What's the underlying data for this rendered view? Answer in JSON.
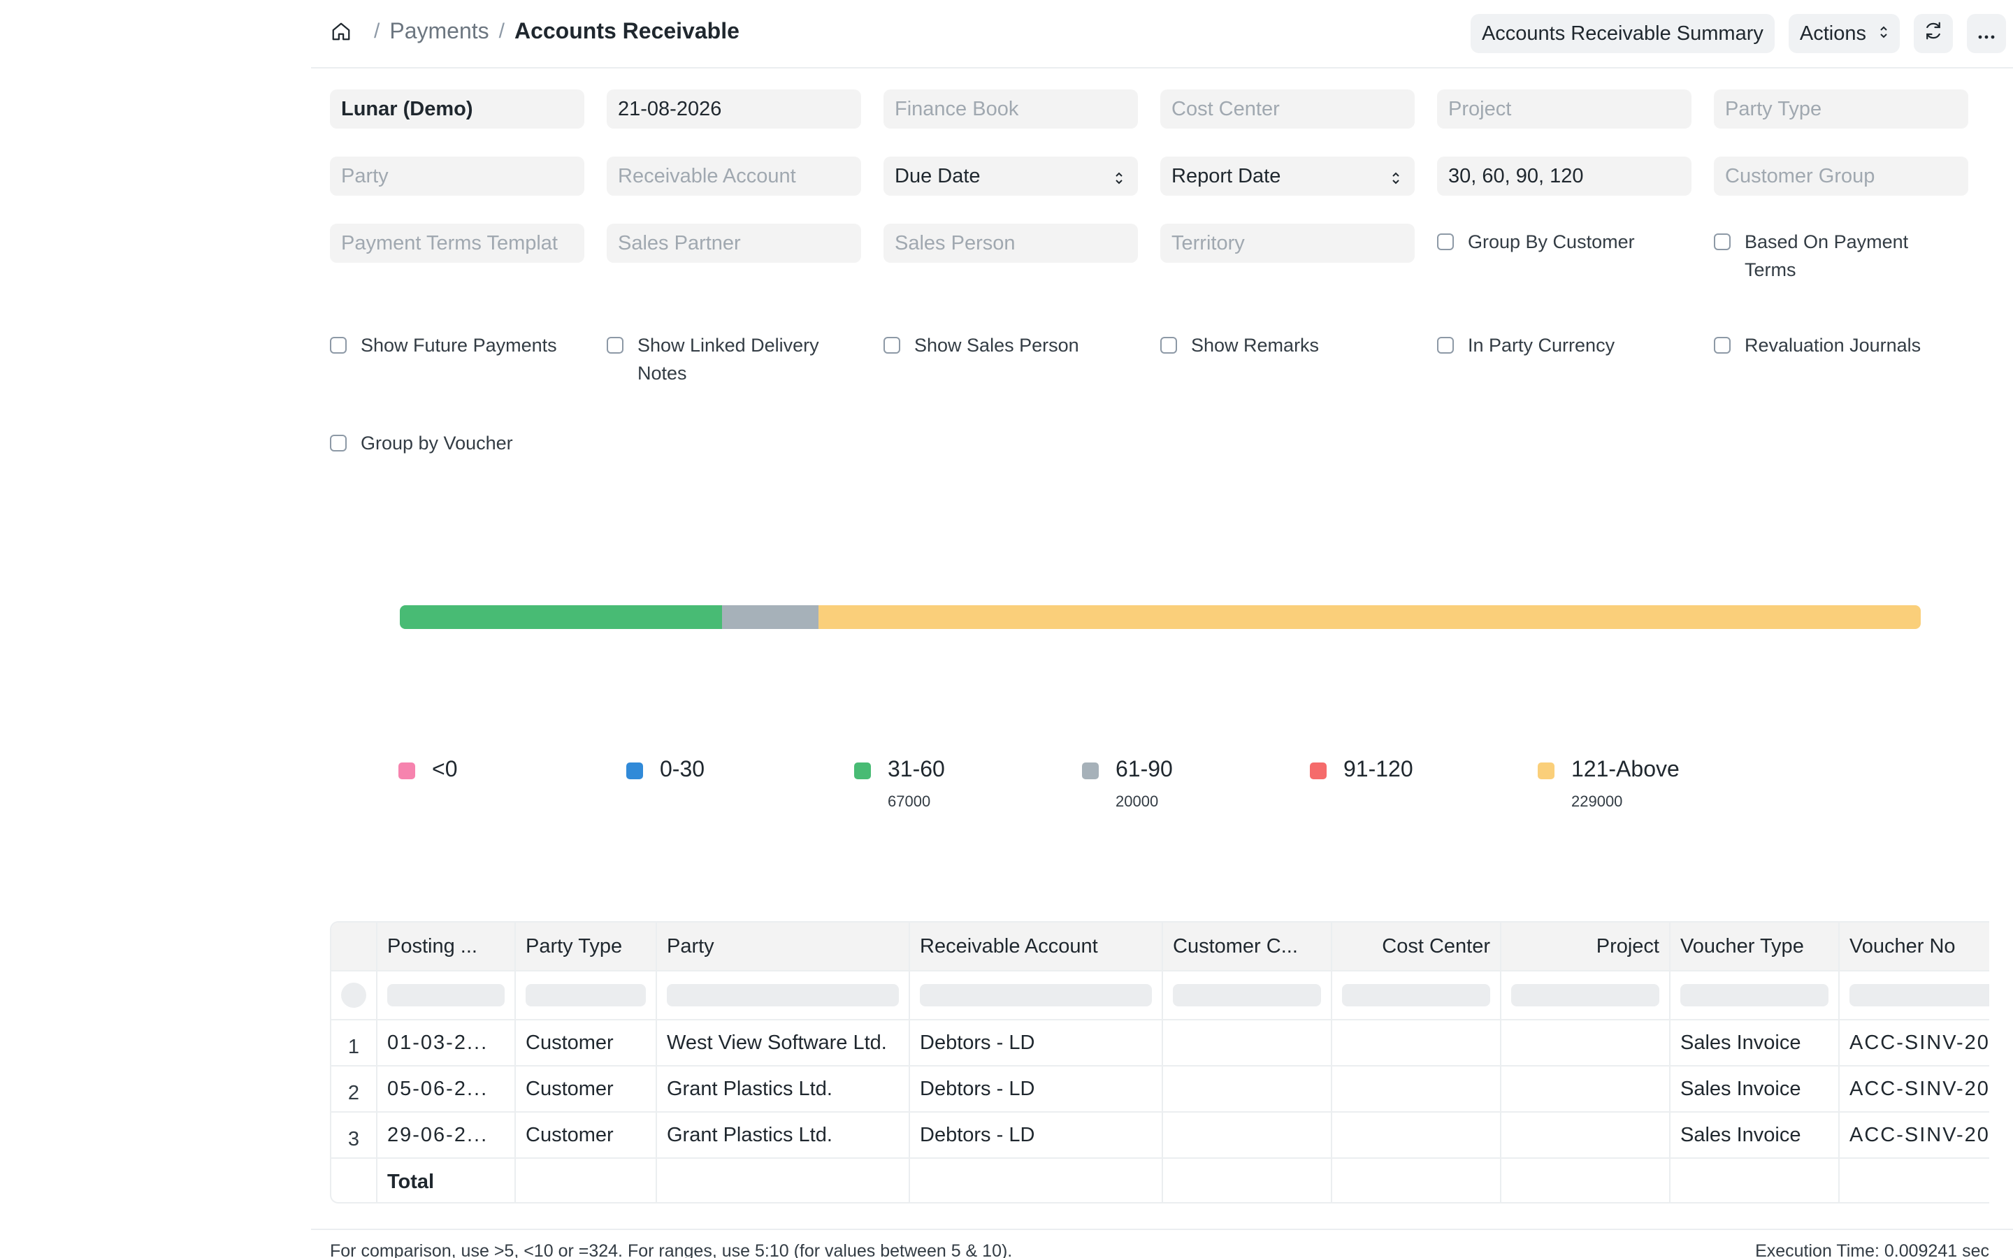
{
  "breadcrumb": {
    "home_icon": "home-icon",
    "parent": "Payments",
    "separator": "/",
    "current": "Accounts Receivable"
  },
  "toolbar": {
    "summary_label": "Accounts Receivable Summary",
    "actions_label": "Actions",
    "refresh_icon": "refresh-icon",
    "more_icon": "more-icon"
  },
  "filters": {
    "company": "Lunar (Demo)",
    "report_date_value": "21-08-2026",
    "finance_book_ph": "Finance Book",
    "cost_center_ph": "Cost Center",
    "project_ph": "Project",
    "party_type_ph": "Party Type",
    "party_ph": "Party",
    "receivable_account_ph": "Receivable Account",
    "ageing_based_on": "Due Date",
    "calculate_ageing_with": "Report Date",
    "range": "30, 60, 90, 120",
    "customer_group_ph": "Customer Group",
    "payment_terms_template_ph": "Payment Terms Templat",
    "sales_partner_ph": "Sales Partner",
    "sales_person_ph": "Sales Person",
    "territory_ph": "Territory"
  },
  "checkboxes": {
    "group_by_customer": "Group By Customer",
    "based_on_payment_terms": "Based On Payment Terms",
    "show_future_payments": "Show Future Payments",
    "show_linked_delivery_notes": "Show Linked Delivery Notes",
    "show_sales_person": "Show Sales Person",
    "show_remarks": "Show Remarks",
    "in_party_currency": "In Party Currency",
    "revaluation_journals": "Revaluation Journals",
    "group_by_voucher": "Group by Voucher"
  },
  "chart_data": {
    "type": "bar",
    "stacked": true,
    "orientation": "horizontal",
    "title": "",
    "categories": [
      "<0",
      "0-30",
      "31-60",
      "61-90",
      "91-120",
      "121-Above"
    ],
    "values": [
      0,
      0,
      67000,
      20000,
      0,
      229000
    ],
    "value_labels": [
      "",
      "",
      "67000",
      "20000",
      "",
      "229000"
    ],
    "colors": [
      "#f683ae",
      "#318ad8",
      "#48bb74",
      "#a6b1b9",
      "#f56b6b",
      "#facf7a"
    ],
    "legend": "bottom",
    "grid": false
  },
  "table": {
    "columns": [
      "",
      "Posting ...",
      "Party Type",
      "Party",
      "Receivable Account",
      "Customer C...",
      "Cost Center",
      "Project",
      "Voucher Type",
      "Voucher No"
    ],
    "rows": [
      {
        "index": "1",
        "posting_date": "01-03-2...",
        "party_type": "Customer",
        "party": "West View Software Ltd.",
        "receivable_account": "Debtors - LD",
        "customer_contact": "",
        "cost_center": "",
        "project": "",
        "voucher_type": "Sales Invoice",
        "voucher_no": "ACC-SINV-20"
      },
      {
        "index": "2",
        "posting_date": "05-06-2...",
        "party_type": "Customer",
        "party": "Grant Plastics Ltd.",
        "receivable_account": "Debtors - LD",
        "customer_contact": "",
        "cost_center": "",
        "project": "",
        "voucher_type": "Sales Invoice",
        "voucher_no": "ACC-SINV-20"
      },
      {
        "index": "3",
        "posting_date": "29-06-2...",
        "party_type": "Customer",
        "party": "Grant Plastics Ltd.",
        "receivable_account": "Debtors - LD",
        "customer_contact": "",
        "cost_center": "",
        "project": "",
        "voucher_type": "Sales Invoice",
        "voucher_no": "ACC-SINV-20"
      }
    ],
    "total_label": "Total"
  },
  "footer": {
    "note": "For comparison, use >5, <10 or =324. For ranges, use 5:10 (for values between 5 & 10).",
    "execution_time": "Execution Time: 0.009241 sec"
  }
}
